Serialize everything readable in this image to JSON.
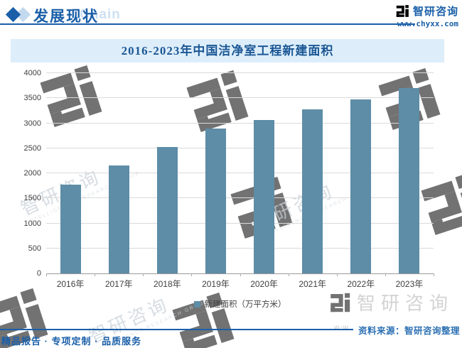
{
  "header": {
    "title": "发展现状",
    "behind_text": "Chain",
    "brand_name": "智研咨询",
    "brand_url": "www.chyxx.com"
  },
  "chart_data": {
    "type": "bar",
    "title": "2016-2023年中国洁净室工程新建面积",
    "categories": [
      "2016年",
      "2017年",
      "2018年",
      "2019年",
      "2020年",
      "2021年",
      "2022年",
      "2023年"
    ],
    "values": [
      1780,
      2150,
      2530,
      2900,
      3060,
      3270,
      3480,
      3700
    ],
    "series_name": "新建面积（万平方米）",
    "xlabel": "",
    "ylabel": "",
    "ylim": [
      0,
      4000
    ],
    "ytick_step": 500,
    "grid": true,
    "legend_position": "bottom",
    "bar_color": "#5d8da7"
  },
  "watermark": {
    "brand": "智研咨询",
    "caption": "INTELLIGENCE RESEARCH GROUP",
    "url_fragment": "w-w"
  },
  "footer": {
    "slogan": "精品报告 · 专项定制 · 品质服务",
    "source": "资料来源：智研咨询整理"
  },
  "colors": {
    "brand_blue": "#1a5fa8",
    "title_band_bg": "#ddeefa",
    "title_text": "#1c5795",
    "bar": "#5d8da7",
    "gridline": "#dadada",
    "source_text": "#2c70b3"
  }
}
